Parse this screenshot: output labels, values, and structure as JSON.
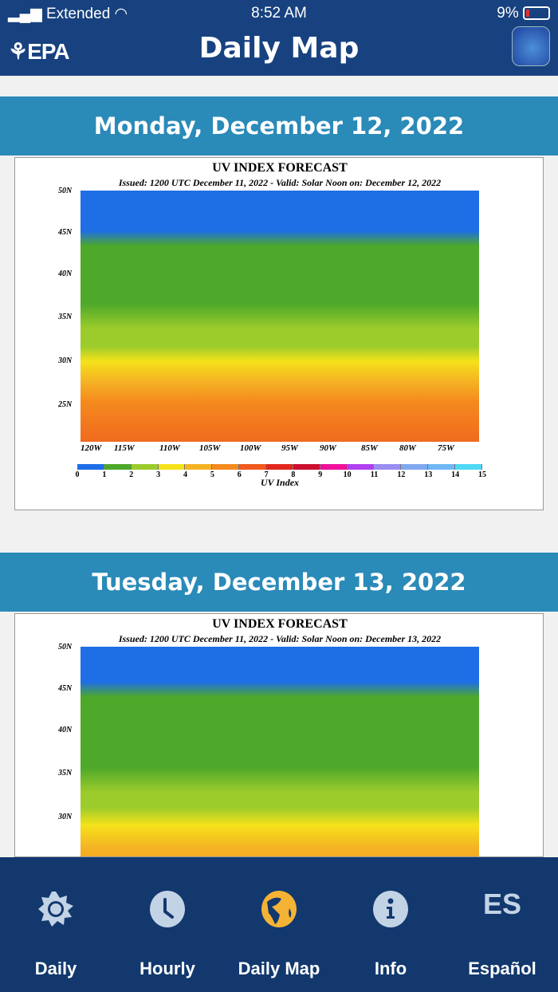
{
  "status_bar": {
    "carrier": "Extended",
    "time": "8:52 AM",
    "battery": "9%"
  },
  "header": {
    "logo": "EPA",
    "title": "Daily Map",
    "app_icon": "sunscreen-globe-icon"
  },
  "maps": [
    {
      "date": "Monday, December 12, 2022",
      "map_title": "UV INDEX FORECAST",
      "issued": "Issued: 1200 UTC December 11, 2022  -  Valid: Solar Noon on: December 12, 2022"
    },
    {
      "date": "Tuesday, December 13, 2022",
      "map_title": "UV INDEX FORECAST",
      "issued": "Issued: 1200 UTC December 11, 2022  -  Valid: Solar Noon on: December 13, 2022"
    }
  ],
  "latitudes": [
    "50N",
    "45N",
    "40N",
    "35N",
    "30N",
    "25N"
  ],
  "longitudes": [
    "120W",
    "115W",
    "110W",
    "105W",
    "100W",
    "95W",
    "90W",
    "85W",
    "80W",
    "75W"
  ],
  "legend": {
    "label": "UV Index",
    "ticks": [
      "0",
      "1",
      "2",
      "3",
      "4",
      "5",
      "6",
      "7",
      "8",
      "9",
      "10",
      "11",
      "12",
      "13",
      "14",
      "15"
    ],
    "colors": [
      "#1e6ee6",
      "#4ea82a",
      "#9ccc2c",
      "#f5e21a",
      "#f5b324",
      "#f58a1e",
      "#f05a1e",
      "#e0281e",
      "#cc1030",
      "#f0109c",
      "#b040f0",
      "#9a8ef0",
      "#80a8f0",
      "#70b8f5",
      "#50d8f5"
    ]
  },
  "tabs": [
    {
      "label": "Daily",
      "icon": "sun-icon",
      "active": false
    },
    {
      "label": "Hourly",
      "icon": "clock-icon",
      "active": false
    },
    {
      "label": "Daily Map",
      "icon": "globe-icon",
      "active": true
    },
    {
      "label": "Info",
      "icon": "info-icon",
      "active": false
    },
    {
      "label": "Español",
      "icon": "ES",
      "active": false
    }
  ],
  "colors": {
    "header": "#17427f",
    "date_bar": "#2a8ab8",
    "tab_bar": "#12386e",
    "active_icon": "#f5b335",
    "inactive_icon": "#c3d3e6"
  }
}
